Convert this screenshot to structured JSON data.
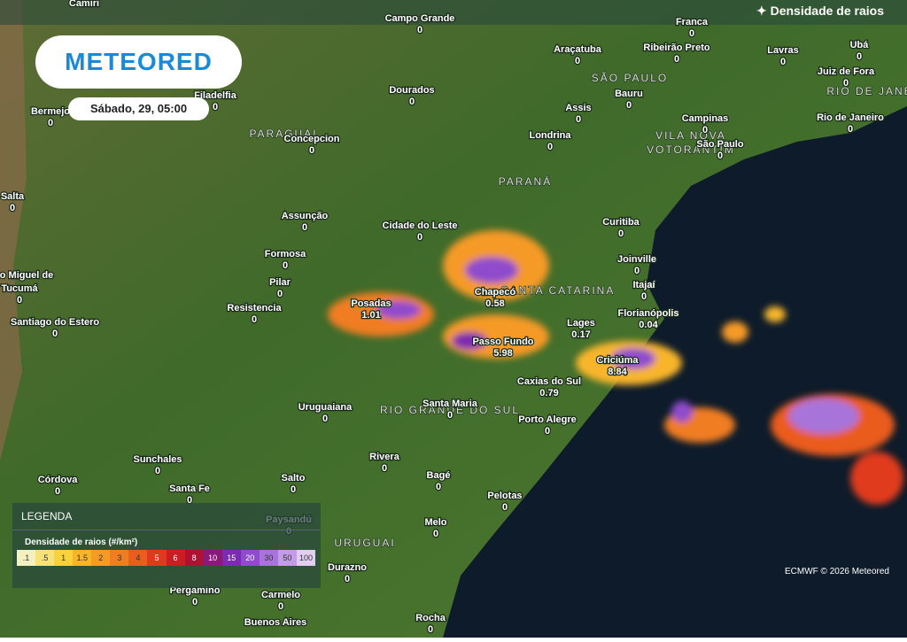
{
  "header": {
    "title": "Densidade de raios"
  },
  "logo": "METEORED",
  "date": "Sábado, 29, 05:00",
  "legend": {
    "heading": "LEGENDA",
    "title": "Densidade de raios (#/km²)",
    "steps": [
      {
        "label": ".1",
        "color": "#f4f1c0"
      },
      {
        "label": ".5",
        "color": "#f7e27a"
      },
      {
        "label": "1",
        "color": "#f8d23a"
      },
      {
        "label": "1.5",
        "color": "#f8b52a"
      },
      {
        "label": "2",
        "color": "#f59a25"
      },
      {
        "label": "3",
        "color": "#f07d22"
      },
      {
        "label": "4",
        "color": "#ea5c1f"
      },
      {
        "label": "5",
        "color": "#e03a1e"
      },
      {
        "label": "6",
        "color": "#cc1d22"
      },
      {
        "label": "8",
        "color": "#b01032"
      },
      {
        "label": "10",
        "color": "#8a1a7a"
      },
      {
        "label": "15",
        "color": "#7b2bb0"
      },
      {
        "label": "20",
        "color": "#8f4ccc"
      },
      {
        "label": "30",
        "color": "#a774da"
      },
      {
        "label": "50",
        "color": "#c49ce6"
      },
      {
        "label": "100",
        "color": "#e2cef3"
      }
    ]
  },
  "footer": "ECMWF © 2026 Meteored",
  "regions": [
    "PARAGUAI",
    "SÃO PAULO",
    "PARANÁ",
    "SANTA CATARINA",
    "RIO GRANDE DO SUL",
    "URUGUAI",
    "RIO DE JANE",
    "VILA NOVA",
    "VOTORANTIM"
  ],
  "cities": [
    {
      "name": "Camiri"
    },
    {
      "name": "Campo Grande",
      "value": 0
    },
    {
      "name": "Franca",
      "value": 0
    },
    {
      "name": "Araçatuba",
      "value": 0
    },
    {
      "name": "Ribeirão Preto",
      "value": 0
    },
    {
      "name": "Lavras",
      "value": 0
    },
    {
      "name": "Ubá",
      "value": 0
    },
    {
      "name": "Juiz de Fora",
      "value": 0
    },
    {
      "name": "Rio de Janeiro",
      "value": 0
    },
    {
      "name": "Filadelfia",
      "value": 0
    },
    {
      "name": "Bermejo",
      "value": 0
    },
    {
      "name": "Dourados",
      "value": 0
    },
    {
      "name": "Assis",
      "value": 0
    },
    {
      "name": "Bauru",
      "value": 0
    },
    {
      "name": "Campinas",
      "value": 0
    },
    {
      "name": "São Paulo",
      "value": 0
    },
    {
      "name": "Concepcion",
      "value": 0
    },
    {
      "name": "Londrina",
      "value": 0
    },
    {
      "name": "Salta",
      "value": 0
    },
    {
      "name": "Assunção",
      "value": 0
    },
    {
      "name": "Cidade do Leste",
      "value": 0
    },
    {
      "name": "Curitiba",
      "value": 0
    },
    {
      "name": "Formosa",
      "value": 0
    },
    {
      "name": "Joinville",
      "value": 0
    },
    {
      "name": "Itajaí",
      "value": 0
    },
    {
      "name": "Pilar",
      "value": 0
    },
    {
      "name": "Chapecó",
      "value": 0.58
    },
    {
      "name": "Posadas",
      "value": 1.01
    },
    {
      "name": "Florianópolis",
      "value": 0.04
    },
    {
      "name": "Resistencia",
      "value": 0
    },
    {
      "name": "o Miguel de"
    },
    {
      "name": "Tucumá",
      "value": 0
    },
    {
      "name": "Santiago do Estero",
      "value": 0
    },
    {
      "name": "Lages",
      "value": 0.17
    },
    {
      "name": "Passo Fundo",
      "value": 5.98
    },
    {
      "name": "Criciúma",
      "value": 8.84
    },
    {
      "name": "Caxias do Sul",
      "value": 0.79
    },
    {
      "name": "Uruguaiana",
      "value": 0
    },
    {
      "name": "Santa Maria",
      "value": 0
    },
    {
      "name": "Porto Alegre",
      "value": 0
    },
    {
      "name": "Rivera",
      "value": 0
    },
    {
      "name": "Sunchales",
      "value": 0
    },
    {
      "name": "Córdova",
      "value": 0
    },
    {
      "name": "Bagé",
      "value": 0
    },
    {
      "name": "Salto",
      "value": 0
    },
    {
      "name": "Santa Fe",
      "value": 0
    },
    {
      "name": "Pelotas",
      "value": 0
    },
    {
      "name": "Paysandú",
      "value": 0
    },
    {
      "name": "Melo",
      "value": 0
    },
    {
      "name": "Durazno",
      "value": 0
    },
    {
      "name": "Pergamino",
      "value": 0
    },
    {
      "name": "Carmelo",
      "value": 0
    },
    {
      "name": "Rocha",
      "value": 0
    },
    {
      "name": "Buenos Aires"
    }
  ]
}
